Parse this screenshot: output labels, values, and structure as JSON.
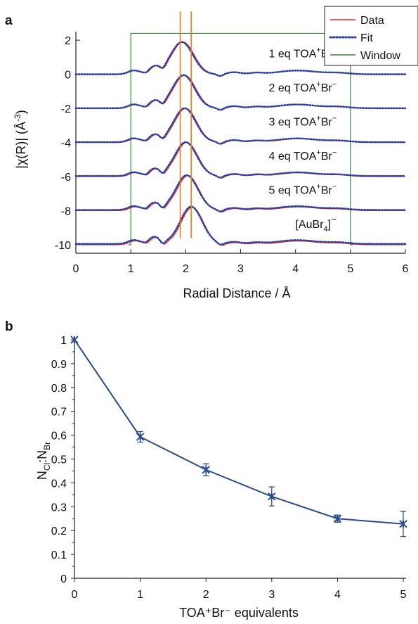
{
  "chart_data": [
    {
      "type": "line",
      "panel": "a",
      "xlabel": "Radial Distance / Å",
      "ylabel_parts": [
        "|χ(R)| (Å",
        "-3",
        ")"
      ],
      "xlim": [
        0,
        6
      ],
      "ylim": [
        -10.5,
        2.5
      ],
      "xticks": [
        0,
        1,
        2,
        3,
        4,
        5,
        6
      ],
      "yticks": [
        2,
        0,
        -2,
        -4,
        -6,
        -8,
        -10
      ],
      "legend": {
        "position": "top-right",
        "items": [
          {
            "label": "Data",
            "style": "solid",
            "color": "#e8281e"
          },
          {
            "label": "Fit",
            "style": "dotted",
            "color": "#2b3f9e"
          },
          {
            "label": "Window",
            "style": "solid",
            "color": "#2e8b3a"
          }
        ]
      },
      "window": {
        "x_start": 1.0,
        "x_end": 5.0,
        "top": 2.4,
        "color": "#2e8b3a"
      },
      "markers": {
        "x": [
          1.9,
          2.1
        ],
        "color": "#f07a1a"
      },
      "series": [
        {
          "label": "1 eq TOA⁺Br⁻",
          "offset": 0,
          "main_peak_x": 1.95,
          "main_peak_h": 1.9
        },
        {
          "label": "2 eq TOA⁺Br⁻",
          "offset": -2,
          "main_peak_x": 1.98,
          "main_peak_h": 1.95
        },
        {
          "label": "3 eq TOA⁺Br⁻",
          "offset": -4,
          "main_peak_x": 2.0,
          "main_peak_h": 2.0
        },
        {
          "label": "4 eq TOA⁺Br⁻",
          "offset": -6,
          "main_peak_x": 2.02,
          "main_peak_h": 2.0
        },
        {
          "label": "5 eq TOA⁺Br⁻",
          "offset": -8,
          "main_peak_x": 2.04,
          "main_peak_h": 2.05
        },
        {
          "label_base": "[AuBr",
          "label_sub": "4",
          "label_sup": "]⁻",
          "offset": -10,
          "main_peak_x": 2.12,
          "main_peak_h": 2.2
        }
      ],
      "colors": {
        "data": "#e8281e",
        "fit": "#2b3f9e"
      }
    },
    {
      "type": "line",
      "panel": "b",
      "xlabel": "TOA⁺Br⁻ equivalents",
      "ylabel_parts": [
        "N",
        "Cl",
        ":N",
        "Br"
      ],
      "xlim": [
        0,
        5
      ],
      "ylim": [
        0,
        1
      ],
      "xticks": [
        0,
        1,
        2,
        3,
        4,
        5
      ],
      "yticks": [
        0,
        0.1,
        0.2,
        0.3,
        0.4,
        0.5,
        0.6,
        0.7,
        0.8,
        0.9,
        1
      ],
      "x": [
        0,
        1,
        2,
        3,
        4,
        5
      ],
      "y": [
        1.0,
        0.593,
        0.455,
        0.343,
        0.25,
        0.228
      ],
      "err": [
        0.0,
        0.022,
        0.025,
        0.04,
        0.015,
        0.053
      ],
      "color": "#2b4a8e"
    }
  ]
}
